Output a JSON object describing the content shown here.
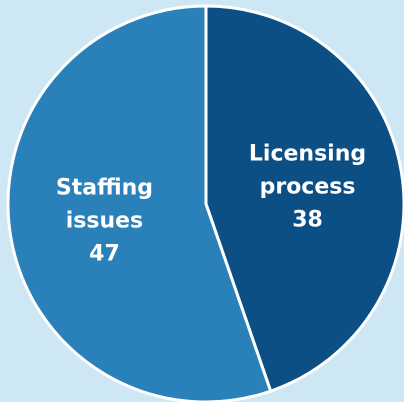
{
  "chart_data": {
    "type": "pie",
    "categories": [
      "Licensing process",
      "Staffing issues"
    ],
    "values": [
      38,
      47
    ],
    "colors": [
      "#0b4f85",
      "#2a81ba"
    ]
  }
}
